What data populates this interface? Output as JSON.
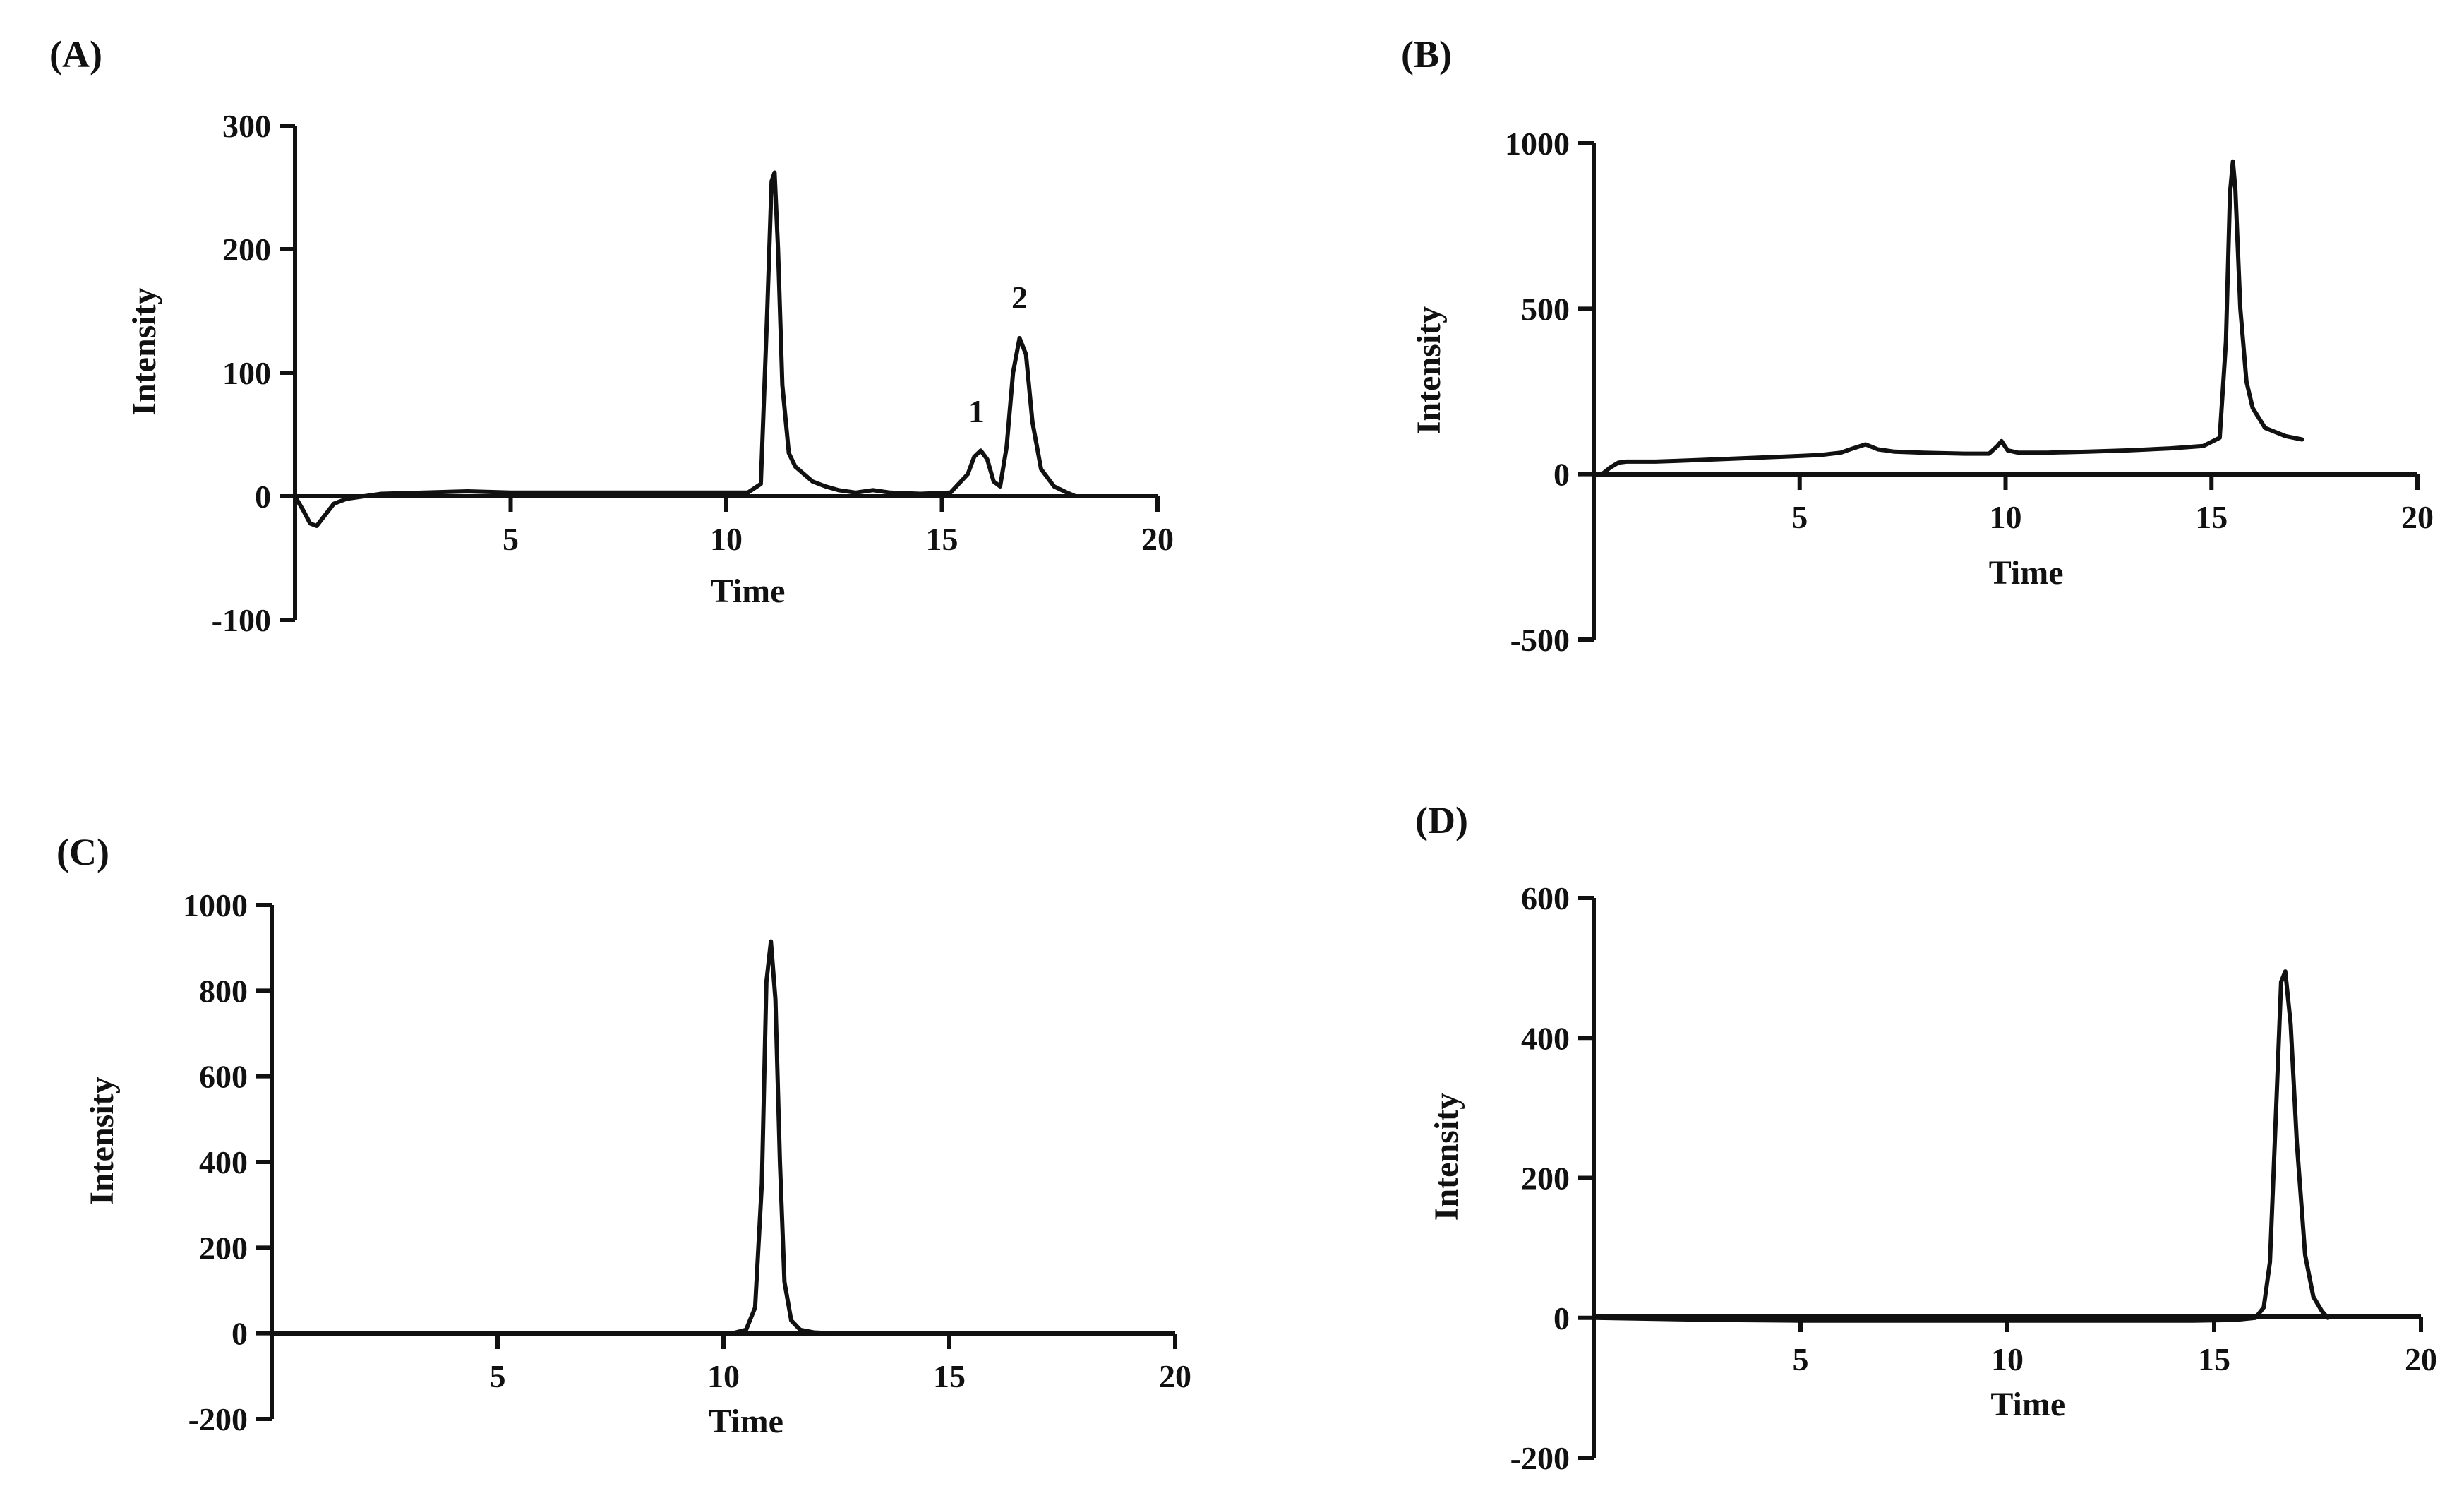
{
  "chart_data": [
    {
      "type": "line",
      "panel_label": "(A)",
      "xlabel": "Time",
      "ylabel": "Intensity",
      "xlim": [
        0,
        20
      ],
      "ylim": [
        -100,
        300
      ],
      "xticks": [
        5,
        10,
        15,
        20
      ],
      "yticks": [
        -100,
        0,
        100,
        200,
        300
      ],
      "tick_labels_x": [
        "5",
        "10",
        "15",
        "20"
      ],
      "tick_labels_y": [
        "-100",
        "0",
        "100",
        "200",
        "300"
      ],
      "grid": false,
      "annotations": [
        {
          "text": "1",
          "x": 15.8,
          "y": 60
        },
        {
          "text": "2",
          "x": 16.8,
          "y": 152
        }
      ],
      "series": [
        {
          "x": [
            0,
            0.2,
            0.35,
            0.5,
            0.7,
            0.9,
            1.2,
            1.6,
            2,
            3,
            4,
            5,
            6,
            7,
            8,
            9,
            10,
            10.5,
            10.8,
            10.95,
            11.05,
            11.12,
            11.2,
            11.3,
            11.45,
            11.6,
            11.8,
            12,
            12.3,
            12.6,
            13,
            13.4,
            13.8,
            14.5,
            15.2,
            15.6,
            15.75,
            15.9,
            16.05,
            16.2,
            16.35,
            16.5,
            16.65,
            16.8,
            16.95,
            17.1,
            17.3,
            17.6,
            17.9,
            18.1
          ],
          "y": [
            0,
            -12,
            -22,
            -24,
            -15,
            -6,
            -2,
            0,
            2,
            3,
            4,
            3,
            3,
            3,
            3,
            3,
            3,
            3,
            10,
            150,
            255,
            262,
            200,
            90,
            35,
            24,
            18,
            12,
            8,
            5,
            3,
            5,
            3,
            2,
            3,
            18,
            32,
            37,
            30,
            12,
            8,
            40,
            100,
            128,
            115,
            60,
            22,
            8,
            3,
            0
          ]
        }
      ]
    },
    {
      "type": "line",
      "panel_label": "(B)",
      "xlabel": "Time",
      "ylabel": "Intensity",
      "xlim": [
        0,
        20
      ],
      "ylim": [
        -500,
        1000
      ],
      "xticks": [
        5,
        10,
        15,
        20
      ],
      "yticks": [
        -500,
        0,
        500,
        1000
      ],
      "tick_labels_x": [
        "5",
        "10",
        "15",
        "20"
      ],
      "tick_labels_y": [
        "-500",
        "0",
        "500",
        "1000"
      ],
      "grid": false,
      "series": [
        {
          "x": [
            0.2,
            0.4,
            0.6,
            0.8,
            1,
            1.5,
            2,
            3,
            4,
            5,
            5.5,
            6,
            6.3,
            6.6,
            6.9,
            7.3,
            8,
            9,
            9.6,
            9.8,
            9.9,
            10.05,
            10.3,
            11,
            12,
            13,
            14,
            14.8,
            15.2,
            15.35,
            15.45,
            15.52,
            15.58,
            15.7,
            15.85,
            16,
            16.3,
            16.8,
            17.2
          ],
          "y": [
            0,
            20,
            35,
            38,
            38,
            38,
            40,
            45,
            50,
            55,
            58,
            65,
            78,
            90,
            75,
            68,
            65,
            62,
            62,
            85,
            100,
            72,
            65,
            65,
            68,
            72,
            78,
            85,
            110,
            400,
            850,
            945,
            860,
            500,
            280,
            200,
            140,
            115,
            105
          ]
        }
      ]
    },
    {
      "type": "line",
      "panel_label": "(C)",
      "xlabel": "Time",
      "ylabel": "Intensity",
      "xlim": [
        0,
        20
      ],
      "ylim": [
        -200,
        1000
      ],
      "xticks": [
        5,
        10,
        15,
        20
      ],
      "yticks": [
        -200,
        0,
        200,
        400,
        600,
        800,
        1000
      ],
      "tick_labels_x": [
        "5",
        "10",
        "15",
        "20"
      ],
      "tick_labels_y": [
        "-200",
        "0",
        "200",
        "400",
        "600",
        "800",
        "1000"
      ],
      "grid": false,
      "series": [
        {
          "x": [
            0,
            2,
            4,
            6,
            8,
            9.5,
            10.2,
            10.5,
            10.7,
            10.85,
            10.95,
            11.05,
            11.15,
            11.25,
            11.35,
            11.5,
            11.7,
            12,
            12.4
          ],
          "y": [
            0,
            0,
            0,
            -1,
            -1,
            -1,
            0,
            8,
            60,
            350,
            820,
            915,
            780,
            400,
            120,
            30,
            8,
            2,
            0
          ]
        }
      ]
    },
    {
      "type": "line",
      "panel_label": "(D)",
      "xlabel": "Time",
      "ylabel": "Intensity",
      "xlim": [
        0,
        20
      ],
      "ylim": [
        -200,
        600
      ],
      "xticks": [
        5,
        10,
        15,
        20
      ],
      "yticks": [
        -200,
        0,
        200,
        400,
        600
      ],
      "tick_labels_x": [
        "5",
        "10",
        "15",
        "20"
      ],
      "tick_labels_y": [
        "-200",
        "0",
        "200",
        "400",
        "600"
      ],
      "grid": false,
      "series": [
        {
          "x": [
            0,
            1,
            2,
            3,
            5,
            7,
            9,
            11,
            13,
            14.5,
            15.5,
            16,
            16.2,
            16.35,
            16.5,
            16.62,
            16.72,
            16.85,
            17,
            17.2,
            17.4,
            17.6,
            17.75
          ],
          "y": [
            0,
            -1,
            -2,
            -3,
            -4,
            -4,
            -4,
            -4,
            -4,
            -4,
            -3,
            0,
            15,
            80,
            300,
            480,
            495,
            420,
            250,
            90,
            30,
            10,
            0
          ]
        }
      ]
    }
  ]
}
